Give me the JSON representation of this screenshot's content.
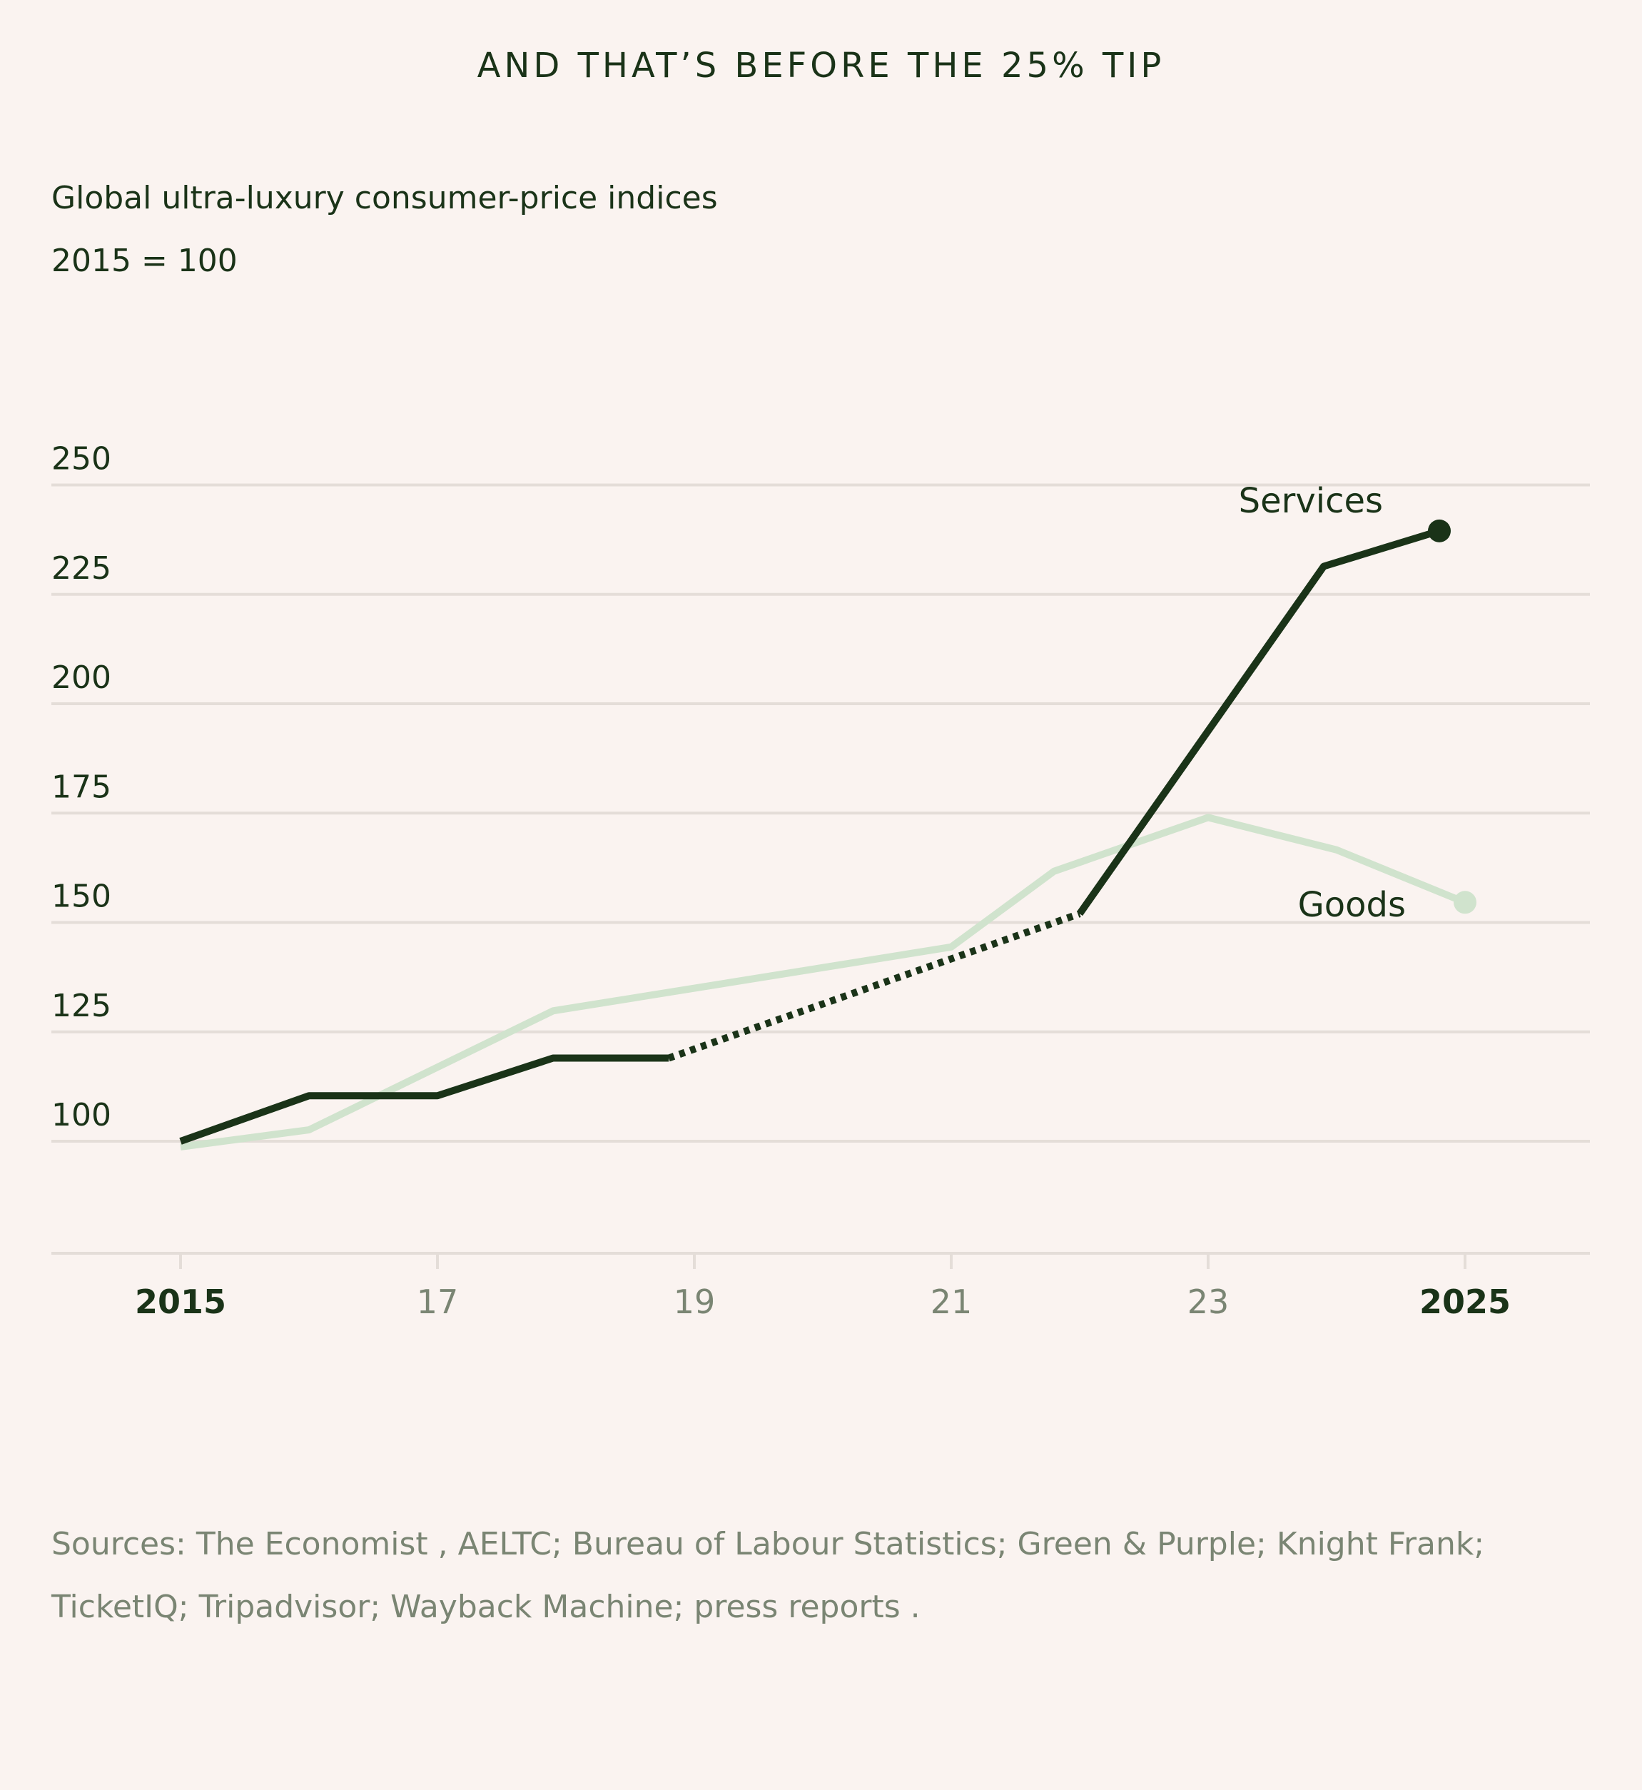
{
  "chart_data": {
    "type": "line",
    "title": "AND THAT’S BEFORE THE 25% TIP",
    "subtitle": "Global ultra-luxury consumer-price indices",
    "subtitle2": "2015 = 100",
    "ylim": [
      74,
      250
    ],
    "yticks": [
      100,
      125,
      150,
      175,
      200,
      225,
      250
    ],
    "xlim": [
      2014.5,
      2026
    ],
    "xticks": [
      {
        "value": 2015,
        "label": "2015",
        "bold": true
      },
      {
        "value": 2017,
        "label": "17"
      },
      {
        "value": 2019,
        "label": "19"
      },
      {
        "value": 2021,
        "label": "21"
      },
      {
        "value": 2023,
        "label": "23"
      },
      {
        "value": 2025,
        "label": "2025",
        "bold": true
      }
    ],
    "grid": true,
    "series": [
      {
        "name": "Goods",
        "color": "#d0e3cd",
        "points": [
          [
            2015,
            98.7
          ],
          [
            2016,
            102.6
          ],
          [
            2017.9,
            129.8
          ],
          [
            2021,
            144.4
          ],
          [
            2021.8,
            161.7
          ],
          [
            2023,
            174
          ],
          [
            2024,
            166.6
          ],
          [
            2025,
            154.6
          ]
        ],
        "segments": [
          {
            "from": 2015,
            "to": 2025,
            "style": "solid"
          }
        ]
      },
      {
        "name": "Services",
        "color": "#1a3318",
        "points": [
          [
            2015,
            100
          ],
          [
            2016,
            110.4
          ],
          [
            2017,
            110.4
          ],
          [
            2017.9,
            119
          ],
          [
            2018.8,
            119
          ],
          [
            2022,
            152
          ],
          [
            2023.9,
            231.4
          ],
          [
            2024.8,
            239.5
          ]
        ],
        "segments": [
          {
            "from": 2015,
            "to": 2018.8,
            "style": "solid"
          },
          {
            "from": 2018.8,
            "to": 2022,
            "style": "dotted"
          },
          {
            "from": 2022,
            "to": 2024.8,
            "style": "solid"
          }
        ]
      }
    ],
    "labels": {
      "services": "Services",
      "goods": "Goods"
    }
  },
  "colors": {
    "background": "#faf3f0",
    "grid": "#e4ddd8",
    "text": "#1a3318",
    "muted": "#7a8573"
  },
  "sources": "Sources: The Economist , AELTC; Bureau of Labour Statistics; Green & Purple; Knight Frank; TicketIQ; Tripadvisor; Wayback Machine; press reports ."
}
